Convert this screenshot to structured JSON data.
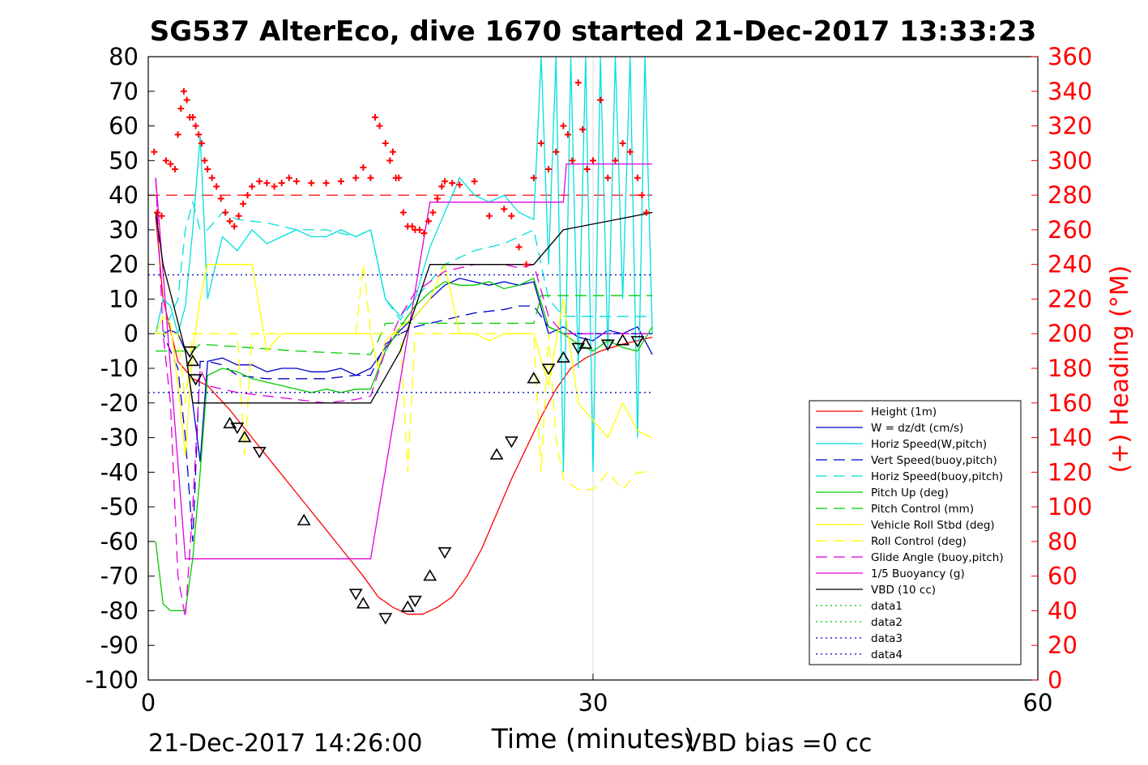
{
  "chart_data": {
    "type": "line",
    "title": "SG537 AlterEco, dive 1670 started 21-Dec-2017 13:33:23",
    "xlabel": "Time (minutes)",
    "ylabel_right": "(+) Heading (°M)",
    "footer_left": "21-Dec-2017 14:26:00",
    "footer_right": "VBD bias =0 cc",
    "xlim": [
      0,
      60
    ],
    "ylim": [
      -100,
      80
    ],
    "ylim_right": [
      0,
      360
    ],
    "xticks": [
      0,
      30,
      60
    ],
    "yticks": [
      80,
      70,
      60,
      50,
      40,
      30,
      20,
      10,
      0,
      -10,
      -20,
      -30,
      -40,
      -50,
      -60,
      -70,
      -80,
      -90,
      -100
    ],
    "yticks_right": [
      360,
      340,
      320,
      300,
      280,
      260,
      240,
      220,
      200,
      180,
      160,
      140,
      120,
      100,
      80,
      60,
      40,
      20,
      0
    ],
    "grid_x": [
      30
    ],
    "legend_position": "bottom-right",
    "colors": {
      "red": "#ff0000",
      "blue": "#0000cc",
      "cyan": "#00e0e0",
      "green": "#00cc00",
      "yellow": "#ffff00",
      "magenta": "#e000e0",
      "black": "#000000"
    },
    "series": [
      {
        "name": "Height (1m)",
        "color": "#ff0000",
        "dash": "solid",
        "x": [
          0.5,
          1,
          2,
          3,
          4,
          5.5,
          7,
          8.5,
          10,
          11.5,
          13,
          14.5,
          15.5,
          16.5,
          17.5,
          18.5,
          19.5,
          20.5,
          21.5,
          22.5,
          23.5,
          24.5,
          25.5,
          26.5,
          27.5,
          28.5,
          29.5,
          30.5,
          32,
          33,
          34
        ],
        "y": [
          34,
          10,
          -8,
          -13,
          -15,
          -22,
          -30,
          -38,
          -46,
          -54,
          -62,
          -70,
          -76,
          -79,
          -81,
          -81,
          -79,
          -76,
          -70,
          -62,
          -52,
          -42,
          -33,
          -24,
          -16,
          -10,
          -7,
          -5,
          -3,
          -2,
          -1
        ]
      },
      {
        "name": "W = dz/dt (cm/s)",
        "color": "#0000cc",
        "dash": "solid",
        "x": [
          0.5,
          1,
          1.5,
          2,
          2.5,
          3,
          3.5,
          4,
          5,
          6,
          7,
          8,
          9,
          10,
          11,
          12,
          13,
          14,
          15,
          16,
          17,
          18,
          19,
          20,
          21,
          22,
          23,
          24,
          25,
          26,
          27,
          28,
          29,
          30,
          31,
          32,
          33,
          34
        ],
        "y": [
          0,
          0,
          1,
          0,
          -5,
          -20,
          -37,
          -8,
          -7,
          -9,
          -9,
          -11,
          -10,
          -10,
          -11,
          -11,
          -10,
          -12,
          -10,
          -4,
          1,
          5,
          10,
          14,
          16,
          15,
          14,
          15,
          14,
          15,
          0,
          2,
          -1,
          -2,
          1,
          0,
          2,
          -6
        ]
      },
      {
        "name": "Horiz Speed(W,pitch)",
        "color": "#00e0e0",
        "dash": "solid",
        "x": [
          0.5,
          1,
          1.5,
          2,
          2.5,
          3,
          3.5,
          4,
          5,
          6,
          7,
          8,
          9,
          10,
          11,
          12,
          13,
          14,
          15,
          16,
          17,
          18,
          19,
          20,
          21,
          22,
          23,
          24,
          25,
          26,
          26.5,
          27,
          27.5,
          28,
          28.5,
          29,
          29.5,
          30,
          30.5,
          31,
          31.5,
          32,
          32.5,
          33,
          33.5,
          34
        ],
        "y": [
          0,
          10,
          8,
          0,
          8,
          30,
          57,
          10,
          28,
          24,
          30,
          26,
          28,
          30,
          28,
          28,
          30,
          28,
          30,
          10,
          5,
          10,
          25,
          35,
          45,
          40,
          38,
          40,
          35,
          33,
          80,
          20,
          80,
          -40,
          80,
          -10,
          80,
          -40,
          80,
          -5,
          80,
          10,
          80,
          -30,
          80,
          0
        ]
      },
      {
        "name": "Vert Speed(buoy,pitch)",
        "color": "#0000cc",
        "dash": "dashed",
        "x": [
          0.5,
          1,
          2,
          2.5,
          3,
          3.5,
          4,
          5,
          6,
          8,
          10,
          12,
          14,
          15,
          16,
          17,
          18,
          20,
          22,
          24,
          25,
          26,
          27,
          28,
          29,
          30,
          32,
          34
        ],
        "y": [
          0,
          0,
          -10,
          -30,
          -60,
          -8,
          -8,
          -9,
          -12,
          -13,
          -13,
          -13,
          -12,
          -12,
          -3,
          0,
          2,
          4,
          6,
          7,
          8,
          8,
          2,
          0,
          0,
          0,
          0,
          0
        ]
      },
      {
        "name": "Horiz Speed(buoy,pitch)",
        "color": "#00e0e0",
        "dash": "dashed",
        "x": [
          0.5,
          1,
          2,
          2.5,
          3,
          3.5,
          4,
          5,
          6,
          8,
          10,
          12,
          14,
          15,
          16,
          17,
          18,
          20,
          22,
          24,
          25,
          26,
          27,
          28,
          29,
          30,
          32,
          34
        ],
        "y": [
          0,
          0,
          10,
          30,
          38,
          30,
          30,
          35,
          33,
          32,
          30,
          30,
          28,
          30,
          10,
          4,
          10,
          20,
          24,
          26,
          28,
          30,
          10,
          5,
          5,
          5,
          5,
          5
        ]
      },
      {
        "name": "Pitch Up (deg)",
        "color": "#00cc00",
        "dash": "solid",
        "x": [
          0.5,
          1,
          1.5,
          2,
          2.5,
          3,
          3.5,
          4,
          5,
          6,
          7,
          8,
          9,
          10,
          11,
          12,
          13,
          14,
          15,
          16,
          17,
          18,
          19,
          20,
          21,
          22,
          23,
          24,
          25,
          26,
          27,
          28,
          29,
          30,
          31,
          32,
          33,
          34
        ],
        "y": [
          -60,
          -78,
          -80,
          -80,
          -80,
          -65,
          -40,
          -12,
          -10,
          -11,
          -13,
          -14,
          -15,
          -16,
          -17,
          -16,
          -17,
          -16,
          -16,
          -5,
          2,
          8,
          12,
          15,
          14,
          14,
          15,
          13,
          14,
          16,
          2,
          0,
          -3,
          -5,
          -2,
          -4,
          -5,
          2
        ]
      },
      {
        "name": "Pitch Control (mm)",
        "color": "#00cc00",
        "dash": "dashed",
        "x": [
          0.5,
          3,
          3.5,
          10,
          15,
          15.5,
          16,
          20,
          22,
          26,
          26.5,
          34
        ],
        "y": [
          -5,
          -5,
          -3,
          -5,
          -6,
          -2,
          3,
          3,
          3,
          3,
          11,
          11
        ]
      },
      {
        "name": "Vehicle Roll Stbd (deg)",
        "color": "#ffff00",
        "dash": "solid",
        "x": [
          0.5,
          1,
          1.5,
          2,
          2.5,
          3,
          3.5,
          4,
          5,
          6,
          7,
          8,
          9,
          10,
          11,
          12,
          13,
          14,
          15,
          15.5,
          16,
          17,
          18,
          19,
          20,
          21,
          22,
          23,
          24,
          25,
          26,
          27,
          28,
          29,
          30,
          31,
          32,
          33,
          34
        ],
        "y": [
          0,
          5,
          3,
          -15,
          -35,
          -5,
          10,
          20,
          20,
          20,
          20,
          -5,
          0,
          0,
          0,
          0,
          0,
          0,
          0,
          -10,
          -2,
          2,
          5,
          10,
          20,
          0,
          0,
          -2,
          0,
          0,
          0,
          -15,
          10,
          -20,
          -25,
          -30,
          -20,
          -28,
          -30
        ]
      },
      {
        "name": "Roll Control (deg)",
        "color": "#ffff00",
        "dash": "dashed",
        "x": [
          0.5,
          2,
          2.5,
          3,
          3.5,
          6,
          6.5,
          7,
          7.5,
          14,
          14.5,
          15,
          15.5,
          17,
          17.5,
          18,
          18.5,
          26,
          26.5,
          27,
          27.5,
          28,
          29,
          30,
          31,
          32,
          33,
          34
        ],
        "y": [
          0,
          0,
          -20,
          0,
          0,
          0,
          -35,
          0,
          0,
          0,
          20,
          0,
          0,
          0,
          -40,
          0,
          0,
          0,
          -40,
          0,
          -30,
          -42,
          -45,
          -45,
          -40,
          -45,
          -40,
          -40
        ]
      },
      {
        "name": "Glide Angle (buoy,pitch)",
        "color": "#e000e0",
        "dash": "dashed",
        "x": [
          0.5,
          1,
          1.5,
          2,
          2.5,
          3,
          3.5,
          4,
          5,
          6,
          8,
          10,
          12,
          14,
          15,
          16,
          17,
          18,
          20,
          22,
          24,
          25,
          26,
          27,
          28,
          30,
          32,
          34
        ],
        "y": [
          45,
          0,
          -20,
          -70,
          -82,
          -50,
          -10,
          -15,
          -16,
          -17,
          -18,
          -19,
          -20,
          -19,
          -18,
          -5,
          5,
          12,
          18,
          20,
          20,
          19,
          20,
          5,
          0,
          0,
          0,
          0
        ]
      },
      {
        "name": "1/5 Buoyancy (g)",
        "color": "#e000e0",
        "dash": "solid",
        "x": [
          0.5,
          2.5,
          2.6,
          15,
          19,
          26,
          28,
          28.2,
          34
        ],
        "y": [
          45,
          -65,
          -65,
          -65,
          38,
          38,
          38,
          49,
          49
        ]
      },
      {
        "name": "VBD (10 cc)",
        "color": "#000000",
        "dash": "solid",
        "x": [
          0.5,
          1,
          2.5,
          3,
          15,
          17,
          19,
          26,
          28,
          34
        ],
        "y": [
          35,
          20,
          -5,
          -20,
          -20,
          -5,
          20,
          20,
          30,
          35
        ]
      },
      {
        "name": "data1",
        "color": "#00cc00",
        "dash": "dotted",
        "x": [
          0,
          34
        ],
        "y": [
          17,
          17
        ]
      },
      {
        "name": "data2",
        "color": "#00cc00",
        "dash": "dotted",
        "x": [
          0,
          34
        ],
        "y": [
          -17,
          -17
        ]
      },
      {
        "name": "data3",
        "color": "#0000cc",
        "dash": "dotted",
        "x": [
          0,
          34
        ],
        "y": [
          17,
          17
        ]
      },
      {
        "name": "data4",
        "color": "#0000cc",
        "dash": "dotted",
        "x": [
          0,
          34
        ],
        "y": [
          -17,
          -17
        ]
      }
    ],
    "heading_reference_line": {
      "value": 280,
      "color": "#ff0000",
      "dash": "dashed",
      "x": [
        0,
        34
      ]
    },
    "heading_points": {
      "color": "#ff0000",
      "x": [
        0.4,
        0.6,
        0.9,
        1.2,
        1.5,
        1.8,
        2.0,
        2.2,
        2.4,
        2.6,
        2.8,
        3.0,
        3.2,
        3.4,
        3.6,
        3.8,
        4.0,
        4.3,
        4.6,
        4.9,
        5.2,
        5.5,
        5.8,
        6.1,
        6.4,
        6.7,
        7.0,
        7.5,
        8,
        8.5,
        9,
        9.5,
        10,
        11,
        12,
        13,
        14,
        14.5,
        15,
        15.3,
        15.6,
        16,
        16.3,
        16.5,
        16.7,
        16.9,
        17.2,
        17.5,
        17.8,
        18,
        18.3,
        18.6,
        18.9,
        19.2,
        19.5,
        19.8,
        20,
        20.5,
        21,
        22,
        23,
        24,
        24.5,
        25,
        25.5,
        26,
        26.5,
        27,
        27.5,
        28,
        28.3,
        28.6,
        29,
        29.3,
        29.6,
        30,
        30.5,
        31,
        31.5,
        32,
        32.5,
        33,
        33.3,
        33.6
      ],
      "y": [
        305,
        270,
        268,
        300,
        298,
        295,
        315,
        330,
        340,
        335,
        325,
        325,
        320,
        315,
        310,
        300,
        295,
        290,
        285,
        278,
        270,
        265,
        262,
        268,
        275,
        280,
        285,
        288,
        287,
        285,
        287,
        290,
        288,
        287,
        287,
        288,
        290,
        296,
        290,
        325,
        320,
        310,
        300,
        305,
        290,
        290,
        270,
        262,
        262,
        260,
        260,
        258,
        265,
        270,
        278,
        285,
        288,
        287,
        286,
        288,
        268,
        272,
        268,
        250,
        240,
        290,
        310,
        295,
        305,
        320,
        315,
        300,
        345,
        318,
        295,
        300,
        335,
        290,
        300,
        310,
        305,
        290,
        280,
        270
      ]
    },
    "height_markers": {
      "x": [
        2.8,
        3.0,
        3.2,
        5.5,
        6.0,
        6.5,
        7.5,
        10.5,
        14.0,
        14.5,
        16.0,
        17.5,
        18.0,
        19.0,
        20.0,
        23.5,
        24.5,
        26.0,
        27.0,
        28.0,
        29.0,
        29.5,
        31.0,
        32.0,
        33.0
      ],
      "y": [
        -5,
        -8,
        -13,
        -26,
        -27,
        -30,
        -34,
        -54,
        -75,
        -78,
        -82,
        -79,
        -77,
        -70,
        -63,
        -35,
        -31,
        -13,
        -10,
        -7,
        -4,
        -3,
        -3,
        -2,
        -2
      ]
    }
  }
}
